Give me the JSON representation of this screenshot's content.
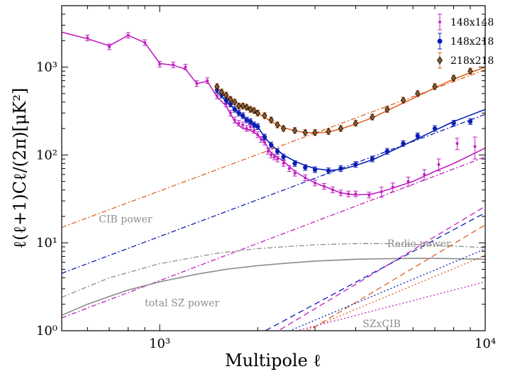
{
  "chart_data": {
    "type": "line",
    "xlabel": "Multipole ℓ",
    "ylabel": "ℓ(ℓ+1)Cℓ/(2π)[μK²]",
    "xscale": "log",
    "yscale": "log",
    "xlim": [
      500,
      10000
    ],
    "ylim": [
      1,
      5000
    ],
    "x_ticks": [
      {
        "value": 1000,
        "label": "10³"
      },
      {
        "value": 10000,
        "label": "10⁴"
      }
    ],
    "y_ticks": [
      {
        "value": 1,
        "label": "10⁰"
      },
      {
        "value": 10,
        "label": "10¹"
      },
      {
        "value": 100,
        "label": "10²"
      },
      {
        "value": 1000,
        "label": "10³"
      }
    ],
    "legend_position": "top-right",
    "legend": [
      {
        "label": "148x148",
        "color": "#c020c0",
        "marker": "dot"
      },
      {
        "label": "148x218",
        "color": "#0a1eb4",
        "marker": "circle"
      },
      {
        "label": "218x218",
        "color": "#e06020",
        "marker": "diamond"
      }
    ],
    "annotations": [
      {
        "text": "CIB power",
        "x": 650,
        "y": 17
      },
      {
        "text": "Radio power",
        "x": 5000,
        "y": 9
      },
      {
        "text": "total SZ power",
        "x": 900,
        "y": 1.9
      },
      {
        "text": "SZxCIB",
        "x": 4200,
        "y": 1.1
      }
    ],
    "series": [
      {
        "name": "148x148",
        "kind": "points",
        "color": "#c020c0",
        "marker": "dot",
        "x": [
          600,
          700,
          800,
          900,
          1000,
          1100,
          1200,
          1300,
          1400,
          1500,
          1600,
          1650,
          1700,
          1750,
          1800,
          1850,
          1900,
          1950,
          2000,
          2050,
          2100,
          2150,
          2200,
          2250,
          2300,
          2400,
          2500,
          2600,
          2800,
          3000,
          3200,
          3400,
          3600,
          3800,
          4000,
          4400,
          4800,
          5200,
          5800,
          6500,
          7200,
          8200,
          9300
        ],
        "y": [
          2150,
          1700,
          2300,
          1900,
          1080,
          1060,
          1000,
          650,
          700,
          470,
          380,
          300,
          250,
          230,
          220,
          200,
          210,
          190,
          170,
          150,
          140,
          110,
          100,
          95,
          90,
          80,
          70,
          62,
          55,
          48,
          44,
          40,
          37,
          36,
          36,
          35,
          38,
          43,
          50,
          60,
          78,
          135,
          125
        ],
        "err": [
          0,
          0,
          0,
          0,
          0,
          0,
          0,
          0,
          0,
          0,
          0,
          0,
          0,
          0,
          0,
          0,
          0,
          0,
          0,
          0,
          0,
          0,
          0,
          0,
          0,
          0,
          0,
          0,
          0,
          0,
          0,
          0,
          0,
          0,
          0,
          0,
          5,
          5,
          6,
          8,
          12,
          20,
          35
        ]
      },
      {
        "name": "148x218",
        "kind": "points",
        "color": "#0a1eb4",
        "marker": "circle",
        "x": [
          1500,
          1550,
          1600,
          1650,
          1700,
          1750,
          1800,
          1850,
          1900,
          1950,
          2000,
          2100,
          2200,
          2300,
          2400,
          2600,
          2800,
          3000,
          3300,
          3600,
          4000,
          4500,
          5000,
          5600,
          6200,
          7000,
          8000,
          9000
        ],
        "y": [
          550,
          480,
          420,
          380,
          330,
          300,
          280,
          250,
          240,
          220,
          210,
          160,
          130,
          110,
          95,
          80,
          72,
          68,
          66,
          70,
          78,
          90,
          110,
          135,
          165,
          200,
          230,
          240
        ],
        "err": [
          0,
          0,
          0,
          0,
          0,
          0,
          0,
          0,
          0,
          0,
          0,
          0,
          0,
          0,
          0,
          0,
          0,
          0,
          0,
          0,
          0,
          0,
          0,
          0,
          0,
          0,
          0,
          0
        ]
      },
      {
        "name": "218x218",
        "kind": "points",
        "color": "#e06020",
        "marker": "diamond",
        "x": [
          1500,
          1550,
          1600,
          1650,
          1700,
          1750,
          1800,
          1850,
          1900,
          1950,
          2000,
          2100,
          2200,
          2300,
          2400,
          2600,
          2800,
          3000,
          3300,
          3600,
          4000,
          4500,
          5000,
          5600,
          6200,
          7000,
          8000,
          9000
        ],
        "y": [
          600,
          520,
          480,
          430,
          400,
          360,
          360,
          350,
          330,
          320,
          300,
          280,
          250,
          220,
          200,
          190,
          180,
          180,
          185,
          200,
          230,
          270,
          330,
          420,
          500,
          600,
          750,
          900
        ],
        "err": [
          0,
          0,
          0,
          0,
          0,
          0,
          0,
          0,
          0,
          0,
          0,
          0,
          0,
          0,
          0,
          0,
          0,
          0,
          0,
          0,
          0,
          0,
          0,
          0,
          0,
          0,
          0,
          0
        ]
      },
      {
        "name": "",
        "kind": "line",
        "color": "#c020c0",
        "dash": "solid",
        "x": [
          500,
          600,
          700,
          800,
          900,
          1000,
          1100,
          1200,
          1300,
          1400,
          1500,
          1600,
          1700,
          1800,
          1900,
          2000,
          2100,
          2200,
          2400,
          2600,
          2800,
          3000,
          3300,
          3600,
          4000,
          4500,
          5000,
          6000,
          7000,
          8000,
          10000
        ],
        "y": [
          2500,
          2100,
          1750,
          2300,
          1900,
          1100,
          1050,
          950,
          650,
          690,
          460,
          360,
          240,
          200,
          190,
          170,
          140,
          105,
          85,
          65,
          55,
          48,
          42,
          37,
          35,
          36,
          40,
          50,
          65,
          80,
          120
        ]
      },
      {
        "name": "",
        "kind": "line",
        "color": "#0a1eb4",
        "dash": "solid",
        "x": [
          1500,
          1600,
          1700,
          1800,
          1900,
          2000,
          2100,
          2200,
          2400,
          2600,
          2800,
          3000,
          3300,
          3600,
          4000,
          4500,
          5000,
          6000,
          7000,
          8000,
          10000
        ],
        "y": [
          520,
          410,
          330,
          270,
          240,
          210,
          160,
          130,
          100,
          85,
          76,
          70,
          67,
          68,
          76,
          88,
          105,
          145,
          190,
          240,
          330
        ]
      },
      {
        "name": "",
        "kind": "line",
        "color": "#e06020",
        "dash": "solid",
        "x": [
          1500,
          1600,
          1700,
          1800,
          1900,
          2000,
          2100,
          2200,
          2400,
          2600,
          2800,
          3000,
          3300,
          3600,
          4000,
          4500,
          5000,
          6000,
          7000,
          8000,
          10000
        ],
        "y": [
          580,
          470,
          400,
          360,
          330,
          300,
          270,
          240,
          205,
          188,
          180,
          178,
          183,
          198,
          225,
          265,
          320,
          440,
          580,
          730,
          1000
        ]
      },
      {
        "name": "",
        "kind": "line",
        "color": "#e06020",
        "dash": "dashdot",
        "x": [
          500,
          10000
        ],
        "y": [
          15,
          930
        ]
      },
      {
        "name": "",
        "kind": "line",
        "color": "#0a1eb4",
        "dash": "dashdot",
        "x": [
          500,
          10000
        ],
        "y": [
          4.5,
          290
        ]
      },
      {
        "name": "",
        "kind": "line",
        "color": "#c020c0",
        "dash": "dashdot",
        "x": [
          500,
          10000
        ],
        "y": [
          1.4,
          95
        ]
      },
      {
        "name": "",
        "kind": "line",
        "color": "#8c8c8c",
        "dash": "dashdot",
        "x": [
          500,
          700,
          1000,
          1500,
          2000,
          3000,
          4000,
          5000,
          6000,
          8000,
          10000
        ],
        "y": [
          2.4,
          4.0,
          5.8,
          7.6,
          8.6,
          9.5,
          9.8,
          9.8,
          9.6,
          9.2,
          8.8
        ]
      },
      {
        "name": "",
        "kind": "line",
        "color": "#8c8c8c",
        "dash": "solid",
        "x": [
          500,
          600,
          700,
          800,
          1000,
          1300,
          1600,
          2000,
          2500,
          3000,
          4000,
          5000,
          6000,
          7000,
          8000,
          10000
        ],
        "y": [
          1.5,
          2.0,
          2.45,
          2.9,
          3.6,
          4.4,
          5.0,
          5.5,
          5.9,
          6.2,
          6.5,
          6.6,
          6.65,
          6.65,
          6.6,
          6.5
        ]
      },
      {
        "name": "",
        "kind": "line",
        "color": "#8c8c8c",
        "dash": "dotted",
        "x": [
          500,
          600,
          700,
          800,
          1000,
          1300,
          1600,
          2000,
          2500,
          3000,
          4000,
          5000,
          6000,
          7000,
          8000,
          10000
        ],
        "y": [
          1.5,
          2.0,
          2.45,
          2.9,
          3.6,
          4.4,
          5.0,
          5.5,
          5.9,
          6.2,
          6.5,
          6.6,
          6.65,
          6.65,
          6.6,
          6.5
        ]
      },
      {
        "name": "",
        "kind": "line",
        "color": "#c020c0",
        "dash": "dashed",
        "x": [
          1500,
          10000
        ],
        "y": [
          0.38,
          26
        ]
      },
      {
        "name": "",
        "kind": "line",
        "color": "#0a1eb4",
        "dash": "dashed",
        "x": [
          2000,
          10000
        ],
        "y": [
          0.9,
          22
        ]
      },
      {
        "name": "",
        "kind": "line",
        "color": "#e06020",
        "dash": "dashed",
        "x": [
          2000,
          10000
        ],
        "y": [
          0.45,
          16
        ]
      },
      {
        "name": "",
        "kind": "line",
        "color": "#0a1eb4",
        "dash": "dotted",
        "x": [
          1500,
          10000
        ],
        "y": [
          0.45,
          8.5
        ]
      },
      {
        "name": "",
        "kind": "line",
        "color": "#e06020",
        "dash": "dotted",
        "x": [
          2000,
          10000
        ],
        "y": [
          0.6,
          7.2
        ]
      },
      {
        "name": "",
        "kind": "line",
        "color": "#c020c0",
        "dash": "dotted",
        "x": [
          2500,
          10000
        ],
        "y": [
          0.95,
          3.6
        ]
      }
    ]
  }
}
